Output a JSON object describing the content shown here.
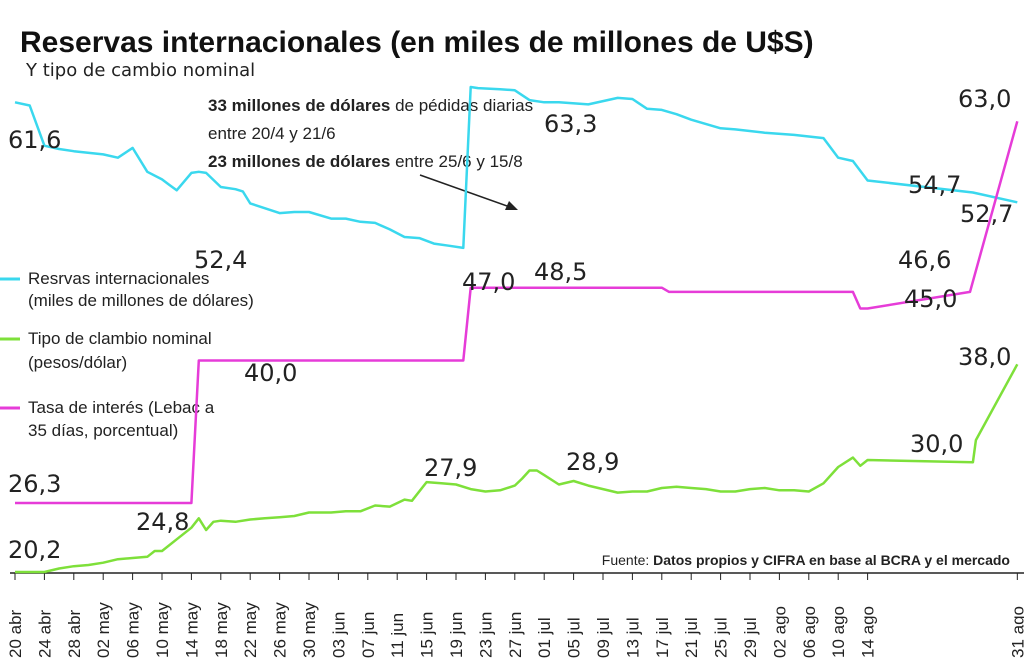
{
  "chart_data": {
    "type": "line",
    "title": "Reservas internacionales (en miles de millones de U$S)",
    "subtitle": "Y tipo de cambio nominal",
    "x_ticks": [
      "20 abr",
      "24 abr",
      "28 abr",
      "02 may",
      "06 may",
      "10 may",
      "14 may",
      "18 may",
      "22 may",
      "26 may",
      "30 may",
      "03 jun",
      "07 jun",
      "11 jun",
      "15 jun",
      "19 jun",
      "23 jun",
      "27 jun",
      "01 jul",
      "05 jul",
      "09 jul",
      "13 jul",
      "17 jul",
      "21 jul",
      "25 jul",
      "29 jul",
      "02 ago",
      "06 ago",
      "10 ago",
      "14 ago",
      "31 ago"
    ],
    "legend_position": "left-middle",
    "grid": false,
    "series": [
      {
        "name": "Resrvas internacionales (miles de millones de dólares)",
        "legend_lines": [
          "Resrvas internacionales",
          "(miles de millones de dólares)"
        ],
        "color": "#3ad8ee",
        "x": [
          "20 abr",
          "22 abr",
          "24 abr",
          "26 abr",
          "28 abr",
          "02 may",
          "04 may",
          "06 may",
          "08 may",
          "10 may",
          "11 may",
          "12 may",
          "14 may",
          "15 may",
          "16 may",
          "18 may",
          "20 may",
          "21 may",
          "22 may",
          "26 may",
          "28 may",
          "30 may",
          "02 jun",
          "04 jun",
          "06 jun",
          "08 jun",
          "10 jun",
          "12 jun",
          "14 jun",
          "16 jun",
          "18 jun",
          "20 jun",
          "21 jun",
          "22 jun",
          "25 jun",
          "27 jun",
          "29 jun",
          "01 jul",
          "03 jul",
          "07 jul",
          "11 jul",
          "13 jul",
          "15 jul",
          "17 jul",
          "19 jul",
          "21 jul",
          "25 jul",
          "27 jul",
          "31 jul",
          "04 ago",
          "08 ago",
          "10 ago",
          "12 ago",
          "14 ago",
          "16 ago",
          "31 ago"
        ],
        "y": [
          61.9,
          61.6,
          57.9,
          57.6,
          57.4,
          57.1,
          56.8,
          57.7,
          55.5,
          54.8,
          54.3,
          53.8,
          55.4,
          55.5,
          55.4,
          54.1,
          53.9,
          53.7,
          52.6,
          51.7,
          51.8,
          51.8,
          51.2,
          51.2,
          50.9,
          50.8,
          50.2,
          49.5,
          49.4,
          48.9,
          48.7,
          48.5,
          63.3,
          63.2,
          63.1,
          63.0,
          62.1,
          61.9,
          61.9,
          61.7,
          62.3,
          62.2,
          61.3,
          61.2,
          60.8,
          60.3,
          59.5,
          59.4,
          59.1,
          58.9,
          58.6,
          56.8,
          56.5,
          54.7,
          53.6,
          52.7
        ]
      },
      {
        "name": "Tipo de clambio nominal (pesos/dólar)",
        "legend_lines": [
          "Tipo de clambio nominal",
          "(pesos/dólar)"
        ],
        "color": "#7ee03a",
        "x": [
          "20 abr",
          "24 abr",
          "26 abr",
          "28 abr",
          "30 abr",
          "02 may",
          "04 may",
          "06 may",
          "08 may",
          "09 may",
          "10 may",
          "12 may",
          "14 may",
          "15 may",
          "16 may",
          "17 may",
          "18 may",
          "20 may",
          "22 may",
          "24 may",
          "26 may",
          "28 may",
          "30 may",
          "02 jun",
          "04 jun",
          "06 jun",
          "08 jun",
          "10 jun",
          "12 jun",
          "13 jun",
          "15 jun",
          "17 jun",
          "19 jun",
          "21 jun",
          "23 jun",
          "25 jun",
          "27 jun",
          "28 jun",
          "29 jun",
          "30 jun",
          "01 jul",
          "03 jul",
          "05 jul",
          "07 jul",
          "09 jul",
          "11 jul",
          "13 jul",
          "15 jul",
          "17 jul",
          "19 jul",
          "21 jul",
          "23 jul",
          "25 jul",
          "27 jul",
          "29 jul",
          "31 jul",
          "02 ago",
          "04 ago",
          "06 ago",
          "08 ago",
          "10 ago",
          "12 ago",
          "13 ago",
          "14 ago",
          "16 ago",
          "17 ago",
          "31 ago"
        ],
        "y": [
          20.2,
          20.2,
          20.5,
          20.7,
          20.8,
          21.0,
          21.3,
          21.4,
          21.5,
          22.0,
          22.0,
          23.0,
          24.0,
          24.8,
          23.8,
          24.5,
          24.6,
          24.5,
          24.7,
          24.8,
          24.9,
          25.0,
          25.3,
          25.3,
          25.4,
          25.4,
          25.9,
          25.8,
          26.4,
          26.3,
          27.9,
          27.8,
          27.7,
          27.3,
          27.1,
          27.2,
          27.6,
          28.2,
          28.9,
          28.9,
          28.5,
          27.7,
          28.0,
          27.6,
          27.3,
          27.0,
          27.1,
          27.1,
          27.4,
          27.5,
          27.4,
          27.3,
          27.1,
          27.1,
          27.3,
          27.4,
          27.2,
          27.2,
          27.1,
          27.8,
          29.2,
          30.0,
          29.3,
          29.8,
          29.6,
          31.5,
          38.0
        ]
      },
      {
        "name": "Tasa de interés (Lebac a 35 días, porcentual)",
        "legend_lines": [
          "Tasa de interés (Lebac a",
          "35 días, porcentual)"
        ],
        "color": "#e63cd8",
        "x": [
          "20 abr",
          "14 may",
          "15 may",
          "20 jun",
          "21 jun",
          "17 jul",
          "18 jul",
          "12 ago",
          "13 ago",
          "14 ago",
          "15 ago",
          "31 ago"
        ],
        "y": [
          26.3,
          26.3,
          40.0,
          40.0,
          47.0,
          47.0,
          46.6,
          46.6,
          45.0,
          45.0,
          46.6,
          63.0
        ]
      }
    ],
    "value_labels": [
      "61,6",
      "52,4",
      "63,3",
      "48,5",
      "54,7",
      "52,7",
      "63,0",
      "47,0",
      "46,6",
      "45,0",
      "40,0",
      "26,3",
      "38,0",
      "30,0",
      "28,9",
      "27,9",
      "24,8",
      "20,2"
    ]
  },
  "annotation": {
    "line1_bold": "33 millones de dólares",
    "line1_rest": " de pédidas diarias",
    "line2": "entre 20/4 y 21/6",
    "line3_bold": "23 millones de dólares",
    "line3_rest": " entre 25/6 y 15/8"
  },
  "source": {
    "prefix": "Fuente: ",
    "text": "Datos propios y CIFRA en base al BCRA y el mercado"
  }
}
